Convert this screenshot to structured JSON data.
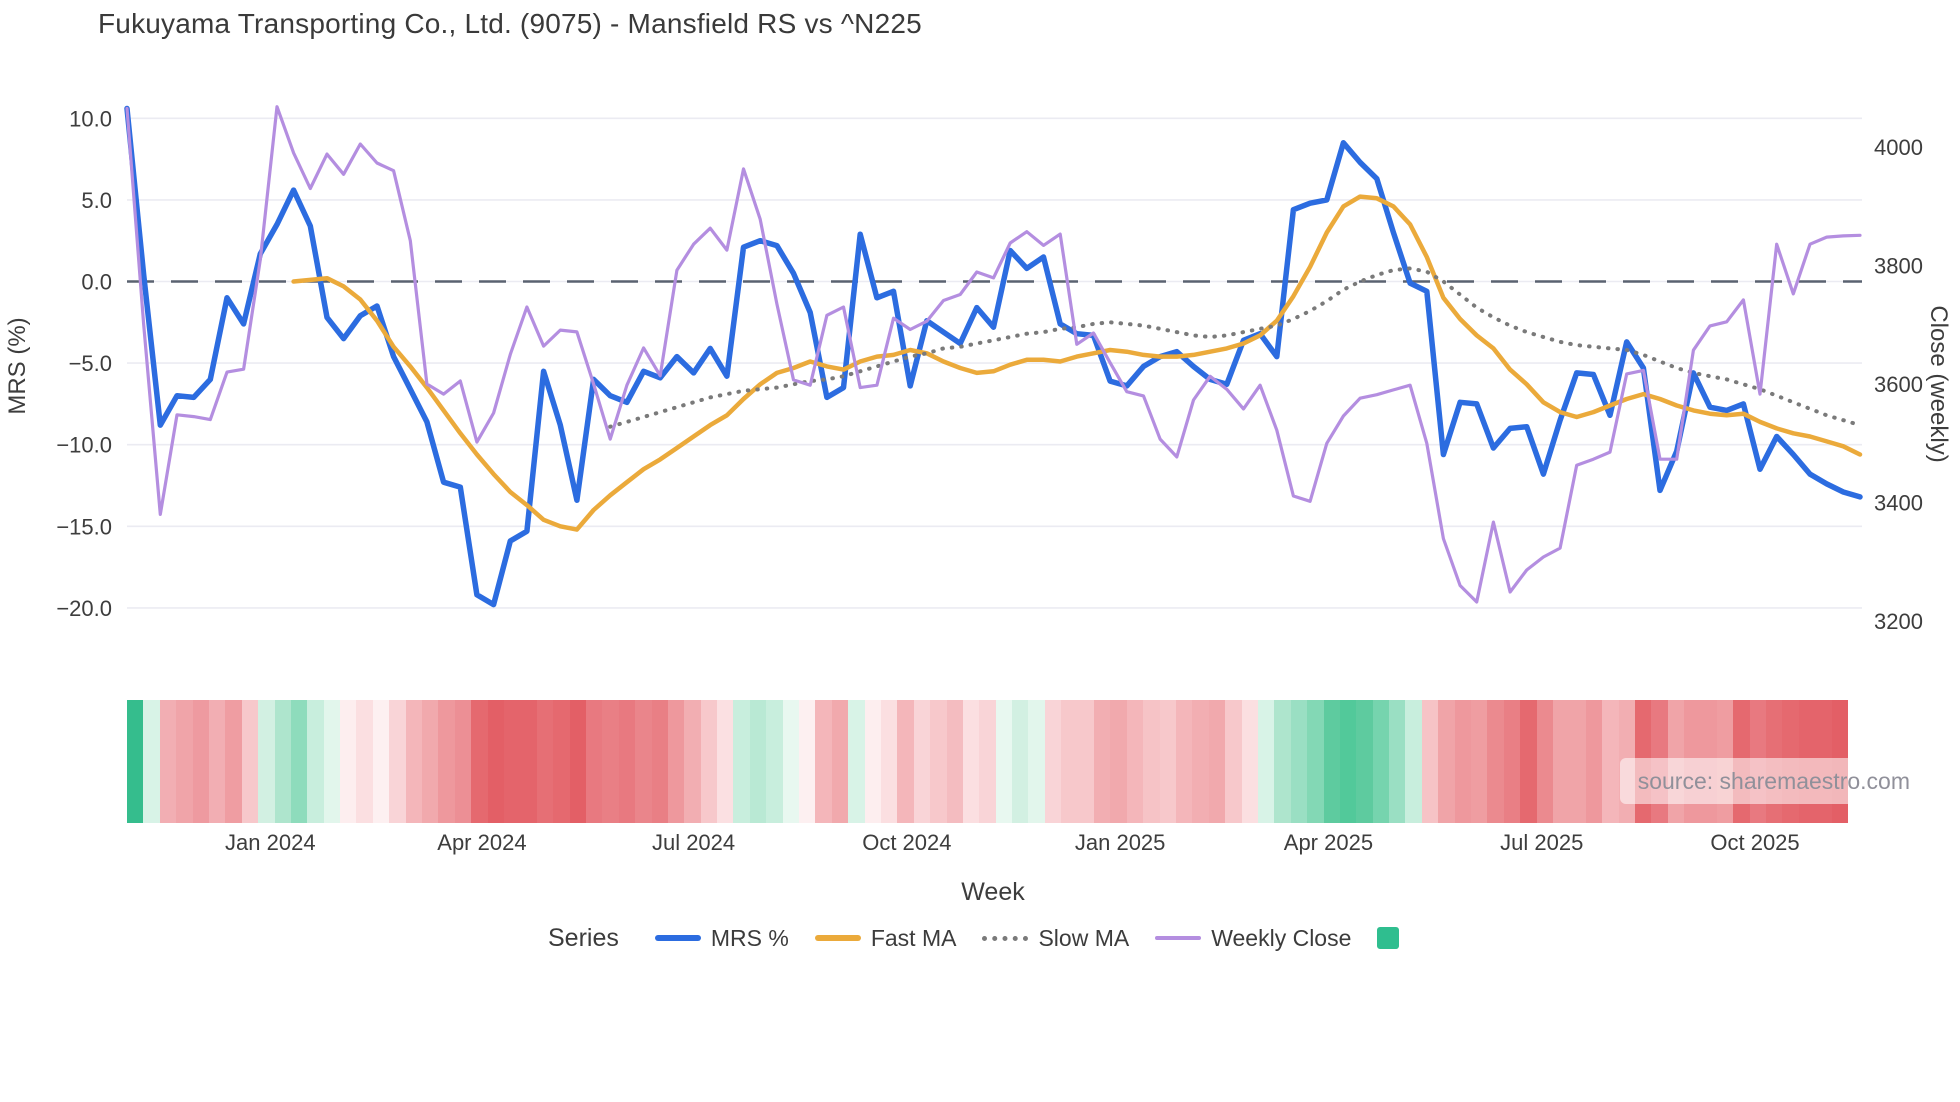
{
  "title": "Fukuyama Transporting Co., Ltd. (9075) - Mansfield RS vs ^N225",
  "source": "source: sharemaestro.com",
  "y_left": {
    "label": "MRS (%)",
    "ticks": [
      {
        "v": 10,
        "t": "10.0"
      },
      {
        "v": 5,
        "t": "5.0"
      },
      {
        "v": 0,
        "t": "0.0"
      },
      {
        "v": -5,
        "t": "−5.0"
      },
      {
        "v": -10,
        "t": "−10.0"
      },
      {
        "v": -15,
        "t": "−15.0"
      },
      {
        "v": -20,
        "t": "−20.0"
      }
    ]
  },
  "y_right": {
    "label": "Close (weekly)",
    "ticks": [
      {
        "v": 4000,
        "t": "4000"
      },
      {
        "v": 3800,
        "t": "3800"
      },
      {
        "v": 3600,
        "t": "3600"
      },
      {
        "v": 3400,
        "t": "3400"
      },
      {
        "v": 3200,
        "t": "3200"
      }
    ]
  },
  "x_axis": {
    "label": "Week",
    "ticks": [
      {
        "week": 8.6,
        "label": "Jan 2024"
      },
      {
        "week": 21.3,
        "label": "Apr 2024"
      },
      {
        "week": 34.0,
        "label": "Jul 2024"
      },
      {
        "week": 46.8,
        "label": "Oct 2024"
      },
      {
        "week": 59.6,
        "label": "Jan 2025"
      },
      {
        "week": 72.1,
        "label": "Apr 2025"
      },
      {
        "week": 84.9,
        "label": "Jul 2025"
      },
      {
        "week": 97.7,
        "label": "Oct 2025"
      }
    ]
  },
  "legend": {
    "title": "Series",
    "items": [
      {
        "label": "MRS %",
        "color": "#2c6ce0",
        "style": "solid-thick"
      },
      {
        "label": "Fast MA",
        "color": "#ebaa3b",
        "style": "solid-thick"
      },
      {
        "label": "Slow MA",
        "color": "#7a7a7a",
        "style": "dotted"
      },
      {
        "label": "Weekly Close",
        "color": "#b48ee0",
        "style": "solid-thin"
      },
      {
        "label": "",
        "color": "#2fbe8f",
        "style": "square"
      }
    ]
  },
  "chart_data": {
    "type": "line",
    "x_unit": "week",
    "n_points": 105,
    "left_ylim": [
      -20,
      10
    ],
    "right_ylim": [
      3200,
      4000
    ],
    "grid": "horizontal-left-ticks",
    "zero_line": {
      "value": 0,
      "style": "dashed",
      "color": "#5a6270"
    },
    "series": [
      {
        "name": "MRS %",
        "axis": "left",
        "color": "#2c6ce0",
        "width": 5.5,
        "dash": "solid",
        "values": [
          10.6,
          0.4,
          -8.8,
          -7.0,
          -7.1,
          -6.0,
          -1.0,
          -2.6,
          1.7,
          3.5,
          5.6,
          3.4,
          -2.2,
          -3.5,
          -2.1,
          -1.5,
          -4.6,
          -6.6,
          -8.6,
          -12.3,
          -12.6,
          -19.2,
          -19.8,
          -15.9,
          -15.3,
          -5.5,
          -8.8,
          -13.4,
          -6.0,
          -7.0,
          -7.4,
          -5.5,
          -5.9,
          -4.6,
          -5.6,
          -4.1,
          -5.8,
          2.1,
          2.5,
          2.2,
          0.5,
          -1.9,
          -7.1,
          -6.5,
          2.9,
          -1.0,
          -0.6,
          -6.4,
          -2.4,
          -3.1,
          -3.8,
          -1.6,
          -2.8,
          1.9,
          0.8,
          1.5,
          -2.6,
          -3.2,
          -3.3,
          -6.1,
          -6.4,
          -5.2,
          -4.6,
          -4.3,
          -5.2,
          -6.0,
          -6.3,
          -3.6,
          -3.2,
          -4.6,
          4.4,
          4.8,
          5.0,
          8.5,
          7.3,
          6.3,
          3.0,
          -0.1,
          -0.6,
          -10.6,
          -7.4,
          -7.5,
          -10.2,
          -9.0,
          -8.9,
          -11.8,
          -8.5,
          -5.6,
          -5.7,
          -8.2,
          -3.7,
          -5.3,
          -12.8,
          -10.4,
          -5.6,
          -7.7,
          -7.9,
          -7.5,
          -11.5,
          -9.5,
          -10.6,
          -11.8,
          -12.4,
          -12.9,
          -13.2
        ]
      },
      {
        "name": "Fast MA",
        "axis": "left",
        "color": "#ebaa3b",
        "width": 4.5,
        "dash": "solid",
        "values": [
          null,
          null,
          null,
          null,
          null,
          null,
          null,
          null,
          null,
          null,
          0.0,
          0.1,
          0.2,
          -0.3,
          -1.1,
          -2.4,
          -4.0,
          -5.2,
          -6.5,
          -7.9,
          -9.3,
          -10.6,
          -11.8,
          -12.9,
          -13.7,
          -14.6,
          -15.0,
          -15.2,
          -14.0,
          -13.1,
          -12.3,
          -11.5,
          -10.9,
          -10.2,
          -9.5,
          -8.8,
          -8.2,
          -7.2,
          -6.3,
          -5.6,
          -5.3,
          -4.9,
          -5.2,
          -5.4,
          -4.9,
          -4.6,
          -4.5,
          -4.2,
          -4.4,
          -4.9,
          -5.3,
          -5.6,
          -5.5,
          -5.1,
          -4.8,
          -4.8,
          -4.9,
          -4.6,
          -4.4,
          -4.2,
          -4.3,
          -4.5,
          -4.6,
          -4.6,
          -4.5,
          -4.3,
          -4.1,
          -3.8,
          -3.3,
          -2.4,
          -0.9,
          0.9,
          3.0,
          4.6,
          5.2,
          5.1,
          4.6,
          3.5,
          1.5,
          -1.0,
          -2.3,
          -3.3,
          -4.1,
          -5.4,
          -6.3,
          -7.4,
          -8.0,
          -8.3,
          -8.0,
          -7.6,
          -7.2,
          -6.9,
          -7.2,
          -7.6,
          -7.9,
          -8.1,
          -8.2,
          -8.1,
          -8.6,
          -9.0,
          -9.3,
          -9.5,
          -9.8,
          -10.1,
          -10.6
        ]
      },
      {
        "name": "Slow MA",
        "axis": "left",
        "color": "#7a7a7a",
        "width": 4,
        "dash": "dotted",
        "values": [
          null,
          null,
          null,
          null,
          null,
          null,
          null,
          null,
          null,
          null,
          null,
          null,
          null,
          null,
          null,
          null,
          null,
          null,
          null,
          null,
          null,
          null,
          null,
          null,
          null,
          null,
          null,
          null,
          null,
          -8.9,
          -8.6,
          -8.3,
          -8.0,
          -7.7,
          -7.4,
          -7.1,
          -6.9,
          -6.7,
          -6.6,
          -6.5,
          -6.3,
          -6.1,
          -6.0,
          -5.8,
          -5.5,
          -5.2,
          -4.9,
          -4.6,
          -4.4,
          -4.1,
          -4.0,
          -3.8,
          -3.6,
          -3.4,
          -3.2,
          -3.1,
          -2.9,
          -2.8,
          -2.6,
          -2.5,
          -2.6,
          -2.7,
          -2.9,
          -3.1,
          -3.3,
          -3.4,
          -3.3,
          -3.1,
          -2.9,
          -2.7,
          -2.3,
          -1.8,
          -1.2,
          -0.5,
          0.0,
          0.4,
          0.7,
          0.8,
          0.6,
          0.0,
          -0.8,
          -1.6,
          -2.2,
          -2.7,
          -3.1,
          -3.4,
          -3.7,
          -3.9,
          -4.0,
          -4.1,
          -4.2,
          -4.5,
          -4.9,
          -5.3,
          -5.6,
          -5.8,
          -6.0,
          -6.3,
          -6.6,
          -7.0,
          -7.4,
          -7.8,
          -8.2,
          -8.5,
          -8.8
        ]
      },
      {
        "name": "Weekly Close",
        "axis": "right",
        "color": "#b48ee0",
        "width": 3.2,
        "dash": "solid",
        "values": [
          4065,
          3700,
          3380,
          3548,
          3545,
          3540,
          3620,
          3625,
          3810,
          4068,
          3990,
          3930,
          3988,
          3954,
          4005,
          3973,
          3960,
          3842,
          3600,
          3583,
          3605,
          3502,
          3551,
          3650,
          3730,
          3664,
          3691,
          3688,
          3600,
          3507,
          3598,
          3661,
          3614,
          3792,
          3836,
          3863,
          3826,
          3963,
          3878,
          3735,
          3607,
          3598,
          3716,
          3730,
          3594,
          3598,
          3711,
          3692,
          3706,
          3741,
          3751,
          3789,
          3779,
          3838,
          3857,
          3834,
          3853,
          3667,
          3686,
          3636,
          3587,
          3580,
          3507,
          3477,
          3573,
          3613,
          3591,
          3558,
          3598,
          3522,
          3411,
          3402,
          3500,
          3546,
          3576,
          3582,
          3590,
          3598,
          3500,
          3339,
          3260,
          3232,
          3367,
          3249,
          3286,
          3308,
          3323,
          3463,
          3473,
          3485,
          3617,
          3623,
          3473,
          3473,
          3657,
          3698,
          3705,
          3742,
          3583,
          3836,
          3752,
          3836,
          3848,
          3850,
          3851
        ]
      }
    ],
    "heatmap": {
      "description": "weekly relative-strength color strip, green=positive red=negative",
      "colors": [
        "#35bd8d",
        "#d8f3e7",
        "#f2aeb3",
        "#f0a4a9",
        "#ee9aa0",
        "#f2aeb3",
        "#ef9da2",
        "#f7c8cb",
        "#d2f0e2",
        "#aee5cd",
        "#8edcbc",
        "#c8eedd",
        "#e2f6ec",
        "#fdeeef",
        "#fbdfe1",
        "#fdf0f1",
        "#f9d4d7",
        "#f4b6ba",
        "#f1a9ad",
        "#ee989d",
        "#ec8f95",
        "#e5696f",
        "#e35f66",
        "#e4646b",
        "#e4646b",
        "#e66f75",
        "#e5696f",
        "#e35f66",
        "#e87980",
        "#e97f85",
        "#e87980",
        "#ea858b",
        "#e97f85",
        "#ee989d",
        "#f2aeb2",
        "#f7c8cb",
        "#fbe0e2",
        "#c8eedd",
        "#b9e9d4",
        "#c8eedd",
        "#e8f8f0",
        "#fdf0f1",
        "#f4b6ba",
        "#f1a9ad",
        "#d8f3e7",
        "#fdeeef",
        "#fbdfe1",
        "#f4b6ba",
        "#f9d4d7",
        "#f7c8cb",
        "#f4bcc0",
        "#fbdfe1",
        "#f9d4d7",
        "#e8f8f0",
        "#d2f0e2",
        "#e2f6ec",
        "#f9d4d7",
        "#f7c8cb",
        "#f7c8cb",
        "#f2aeb2",
        "#f1a9ad",
        "#f4b6ba",
        "#f6c3c6",
        "#f7c8cb",
        "#f4b6ba",
        "#f2aeb2",
        "#f1a9ad",
        "#f7c8cb",
        "#fbdfe1",
        "#d8f3e7",
        "#aee5cd",
        "#9adfc3",
        "#83d8b5",
        "#5ecb9f",
        "#52c99a",
        "#5ecb9f",
        "#76d4ae",
        "#9adfc3",
        "#c8eedd",
        "#f6c3c6",
        "#f0a4a8",
        "#ee989d",
        "#ef9da1",
        "#eb8a8f",
        "#e97f85",
        "#e5696f",
        "#eb8a8f",
        "#f0a4a8",
        "#f0a4a8",
        "#ee989d",
        "#f4b6ba",
        "#f2aeb2",
        "#e5696f",
        "#e87980",
        "#f0a4a8",
        "#ee989d",
        "#ee989d",
        "#ef9da1",
        "#e5696f",
        "#e87980",
        "#e66f75",
        "#e5696f",
        "#e4646b",
        "#e4646b",
        "#e35f66"
      ]
    }
  }
}
